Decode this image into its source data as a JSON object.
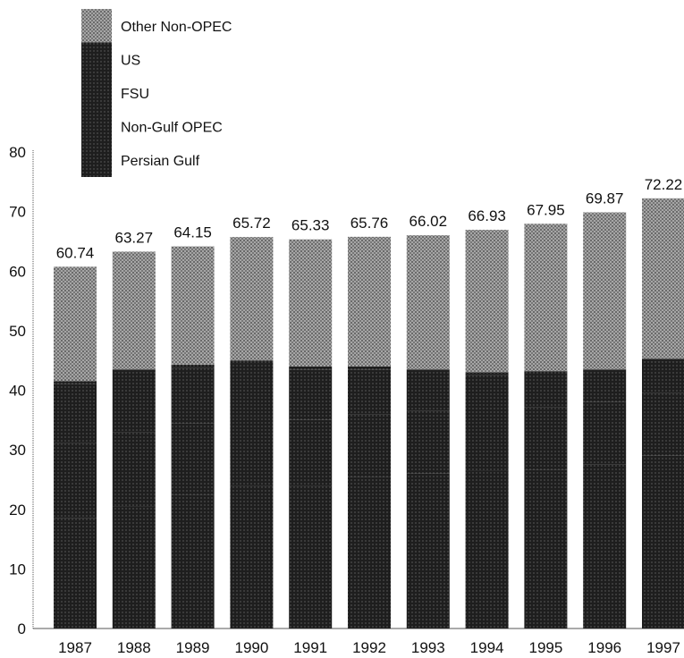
{
  "chart_data": {
    "type": "bar",
    "stacked": true,
    "title": "",
    "xlabel": "",
    "ylabel": "",
    "ylim": [
      0,
      80
    ],
    "yticks": [
      0,
      10,
      20,
      30,
      40,
      50,
      60,
      70,
      80
    ],
    "grid": false,
    "legend_position": "top-left",
    "categories": [
      "1987",
      "1988",
      "1989",
      "1990",
      "1991",
      "1992",
      "1993",
      "1994",
      "1995",
      "1996",
      "1997"
    ],
    "totals": [
      "60.74",
      "63.27",
      "64.15",
      "65.72",
      "65.33",
      "65.76",
      "66.02",
      "66.93",
      "67.95",
      "69.87",
      "72.22"
    ],
    "series": [
      {
        "name": "Persian Gulf",
        "color": "#141414",
        "values": [
          18.5,
          20.5,
          22.5,
          24.0,
          24.0,
          25.5,
          26.0,
          26.5,
          26.7,
          27.5,
          29.0
        ]
      },
      {
        "name": "Non-Gulf OPEC",
        "color": "#262626",
        "values": [
          12.7,
          12.5,
          12.0,
          11.5,
          11.0,
          10.5,
          10.5,
          10.5,
          10.5,
          10.5,
          10.5
        ]
      },
      {
        "name": "FSU",
        "color": "#404040",
        "values": [
          9.8,
          10.0,
          9.3,
          9.0,
          8.5,
          7.5,
          6.5,
          5.5,
          5.5,
          5.0,
          5.3
        ]
      },
      {
        "name": "US",
        "color": "#1c1c1c",
        "values": [
          0.5,
          0.5,
          0.5,
          0.5,
          0.5,
          0.5,
          0.5,
          0.5,
          0.5,
          0.5,
          0.5
        ]
      },
      {
        "name": "Other Non-OPEC",
        "color": "#8f8f8f",
        "values": [
          19.24,
          19.77,
          19.85,
          20.72,
          21.33,
          21.76,
          22.52,
          23.93,
          24.75,
          26.37,
          26.92
        ]
      }
    ]
  }
}
